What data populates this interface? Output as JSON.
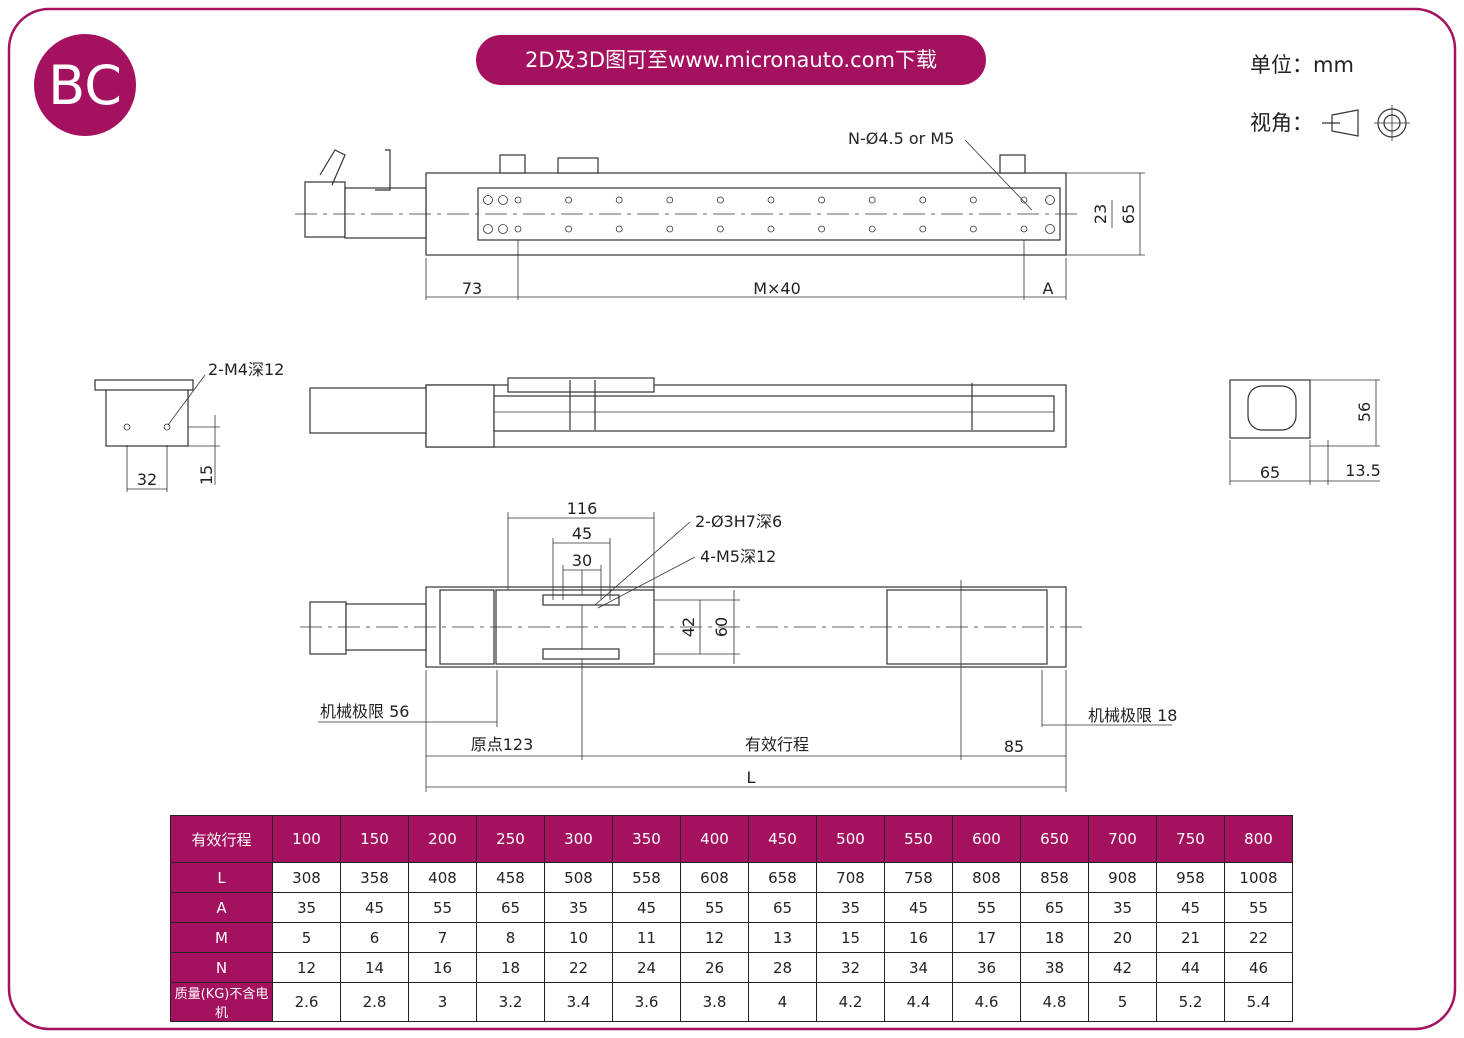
{
  "colors": {
    "brand": "#a4115f",
    "line": "#333333"
  },
  "badge": "BC",
  "banner": "2D及3D图可至www.micronauto.com下载",
  "unit": "单位：mm",
  "view_angle": {
    "label": "视角：",
    "icons": [
      "first-angle-frustum-icon",
      "concentric-circles-icon"
    ]
  },
  "top_view": {
    "hole_note": "N-Ø4.5 or M5",
    "dim_73": "73",
    "dim_pitch": "M×40",
    "dim_a": "A",
    "dim_23": "23",
    "dim_65": "65"
  },
  "end_view_left": {
    "thread_note": "2-M4深12",
    "dim_32": "32",
    "dim_15": "15"
  },
  "end_view_right": {
    "dim_56": "56",
    "dim_65": "65",
    "dim_13_5": "13.5"
  },
  "bottom_view": {
    "dim_116": "116",
    "dim_45": "45",
    "dim_30": "30",
    "pin_note": "2-Ø3H7深6",
    "thread_note": "4-M5深12",
    "dim_42": "42",
    "dim_60": "60",
    "mech_limit_left": "机械极限 56",
    "mech_limit_right": "机械极限 18",
    "origin": "原点123",
    "stroke": "有效行程",
    "dim_85": "85",
    "dim_L": "L"
  },
  "table": {
    "header": [
      "有效行程",
      "100",
      "150",
      "200",
      "250",
      "300",
      "350",
      "400",
      "450",
      "500",
      "550",
      "600",
      "650",
      "700",
      "750",
      "800"
    ],
    "rows": [
      {
        "label": "L",
        "values": [
          "308",
          "358",
          "408",
          "458",
          "508",
          "558",
          "608",
          "658",
          "708",
          "758",
          "808",
          "858",
          "908",
          "958",
          "1008"
        ]
      },
      {
        "label": "A",
        "values": [
          "35",
          "45",
          "55",
          "65",
          "35",
          "45",
          "55",
          "65",
          "35",
          "45",
          "55",
          "65",
          "35",
          "45",
          "55"
        ]
      },
      {
        "label": "M",
        "values": [
          "5",
          "6",
          "7",
          "8",
          "10",
          "11",
          "12",
          "13",
          "15",
          "16",
          "17",
          "18",
          "20",
          "21",
          "22"
        ]
      },
      {
        "label": "N",
        "values": [
          "12",
          "14",
          "16",
          "18",
          "22",
          "24",
          "26",
          "28",
          "32",
          "34",
          "36",
          "38",
          "42",
          "44",
          "46"
        ]
      },
      {
        "label": "质量(KG)不含电机",
        "values": [
          "2.6",
          "2.8",
          "3",
          "3.2",
          "3.4",
          "3.6",
          "3.8",
          "4",
          "4.2",
          "4.4",
          "4.6",
          "4.8",
          "5",
          "5.2",
          "5.4"
        ]
      }
    ]
  }
}
